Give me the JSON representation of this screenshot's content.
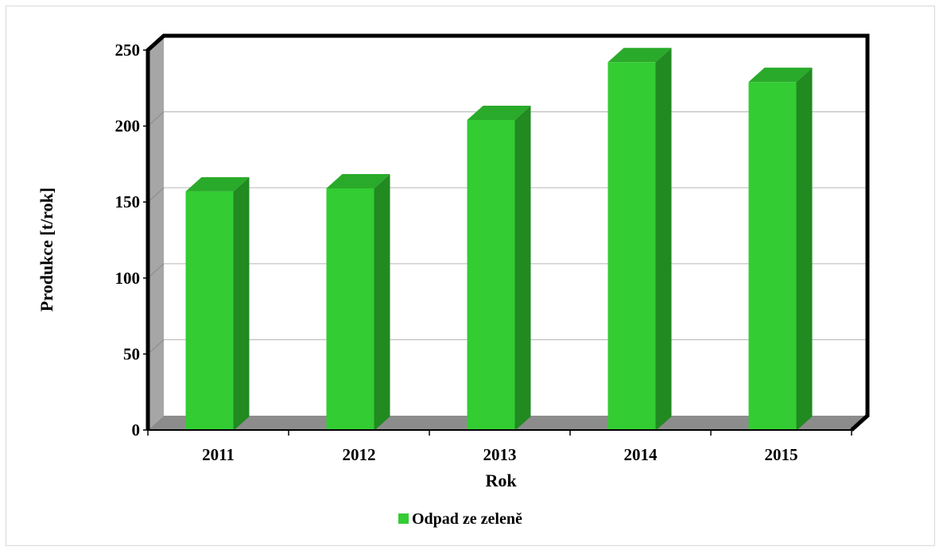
{
  "chart_data": {
    "type": "bar",
    "categories": [
      "2011",
      "2012",
      "2013",
      "2014",
      "2015"
    ],
    "series": [
      {
        "name": "Odpad ze zeleně",
        "values": [
          157,
          159,
          204,
          242,
          229
        ]
      }
    ],
    "title": "",
    "xlabel": "Rok",
    "ylabel": "Produkce [t/rok]",
    "ylim": [
      0,
      250
    ],
    "yticks": [
      "0",
      "50",
      "100",
      "150",
      "200",
      "250"
    ],
    "grid": true,
    "three_d": true,
    "legend_position": "bottom",
    "colors": {
      "bar_front": "#33cc33",
      "bar_side": "#218a21",
      "bar_top": "#2aaa2a",
      "wall": "#ffffff",
      "side_wall": "#a6a6a6",
      "floor": "#8c8c8c",
      "frame": "#000000",
      "grid": "#bfbfbf"
    }
  }
}
